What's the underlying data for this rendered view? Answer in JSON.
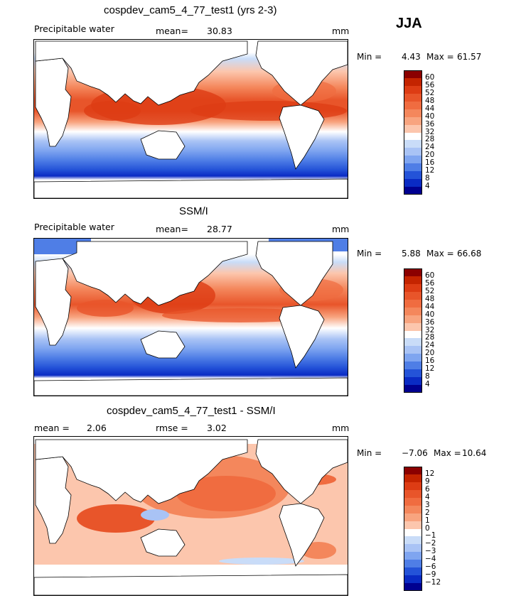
{
  "season": "JJA",
  "panels": [
    {
      "id": "model",
      "title": "cospdev_cam5_4_77_test1 (yrs 2-3)",
      "left_label": "Precipitable water",
      "stat_label": "mean=",
      "stat_value": "30.83",
      "units": "mm",
      "min_label": "Min =",
      "min_value": "4.43",
      "max_label": "Max =",
      "max_value": "61.57",
      "levels": [
        "60",
        "56",
        "52",
        "48",
        "44",
        "40",
        "36",
        "32",
        "28",
        "24",
        "20",
        "16",
        "12",
        "8",
        "4"
      ],
      "colors": [
        "#8b0000",
        "#c42400",
        "#dd3c14",
        "#e8552a",
        "#f06c40",
        "#f4875c",
        "#f8a47f",
        "#fcc6ad",
        "#ffffff",
        "#c9dcf8",
        "#a9c3f5",
        "#7fa5f0",
        "#4f7ee6",
        "#2453d8",
        "#0a2bc4",
        "#000090"
      ]
    },
    {
      "id": "obs",
      "title": "SSM/I",
      "left_label": "Precipitable water",
      "stat_label": "mean=",
      "stat_value": "28.77",
      "units": "mm",
      "min_label": "Min =",
      "min_value": "5.88",
      "max_label": "Max =",
      "max_value": "66.68",
      "levels": [
        "60",
        "56",
        "52",
        "48",
        "44",
        "40",
        "36",
        "32",
        "28",
        "24",
        "20",
        "16",
        "12",
        "8",
        "4"
      ],
      "colors": [
        "#8b0000",
        "#c42400",
        "#dd3c14",
        "#e8552a",
        "#f06c40",
        "#f4875c",
        "#f8a47f",
        "#fcc6ad",
        "#ffffff",
        "#c9dcf8",
        "#a9c3f5",
        "#7fa5f0",
        "#4f7ee6",
        "#2453d8",
        "#0a2bc4",
        "#000090"
      ]
    },
    {
      "id": "diff",
      "title": "cospdev_cam5_4_77_test1 - SSM/I",
      "left_label": "mean =",
      "left_value": "2.06",
      "stat_label": "rmse =",
      "stat_value": "3.02",
      "units": "mm",
      "min_label": "Min =",
      "min_value": "−7.06",
      "max_label": "Max =",
      "max_value": "10.64",
      "levels": [
        "12",
        "9",
        "6",
        "4",
        "3",
        "2",
        "1",
        "0",
        "−1",
        "−2",
        "−3",
        "−4",
        "−6",
        "−9",
        "−12"
      ],
      "colors": [
        "#8b0000",
        "#c42400",
        "#dd3c14",
        "#e8552a",
        "#f06c40",
        "#f4875c",
        "#f8a47f",
        "#fcc6ad",
        "#ffffff",
        "#c9dcf8",
        "#a9c3f5",
        "#7fa5f0",
        "#4f7ee6",
        "#2453d8",
        "#0a2bc4",
        "#000090"
      ]
    }
  ]
}
